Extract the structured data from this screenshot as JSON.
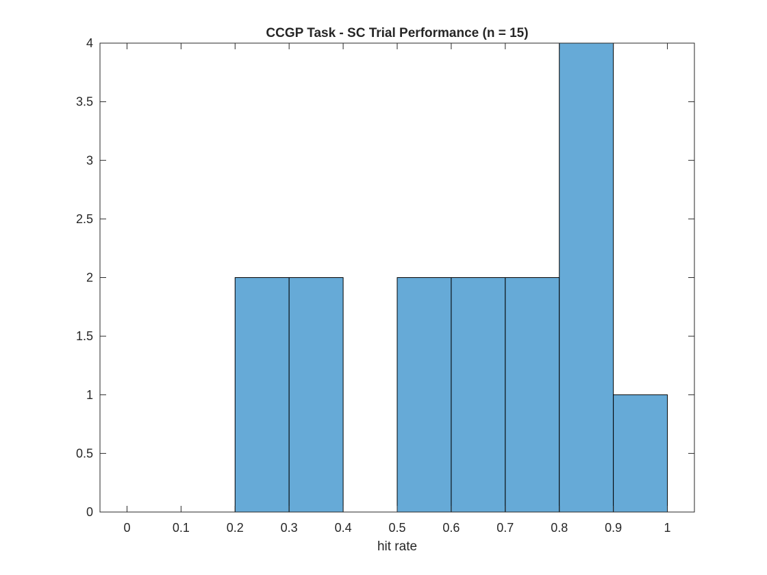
{
  "chart_data": {
    "type": "bar",
    "title": "CCGP Task - SC Trial Performance (n = 15)",
    "xlabel": "hit rate",
    "ylabel": "",
    "bin_edges": [
      0.2,
      0.3,
      0.4,
      0.5,
      0.6,
      0.7,
      0.8,
      0.9,
      1.0
    ],
    "values": [
      2,
      2,
      0,
      2,
      2,
      2,
      4,
      1
    ],
    "xlim": [
      -0.05,
      1.05
    ],
    "ylim": [
      0,
      4
    ],
    "xticks": [
      0,
      0.1,
      0.2,
      0.3,
      0.4,
      0.5,
      0.6,
      0.7,
      0.8,
      0.9,
      1
    ],
    "xtick_labels": [
      "0",
      "0.1",
      "0.2",
      "0.3",
      "0.4",
      "0.5",
      "0.6",
      "0.7",
      "0.8",
      "0.9",
      "1"
    ],
    "yticks": [
      0,
      0.5,
      1,
      1.5,
      2,
      2.5,
      3,
      3.5,
      4
    ],
    "ytick_labels": [
      "0",
      "0.5",
      "1",
      "1.5",
      "2",
      "2.5",
      "3",
      "3.5",
      "4"
    ],
    "grid": false,
    "legend": null,
    "bar_color": "#66aad7",
    "edge_color": "#000000",
    "axis_color": "#262626"
  }
}
